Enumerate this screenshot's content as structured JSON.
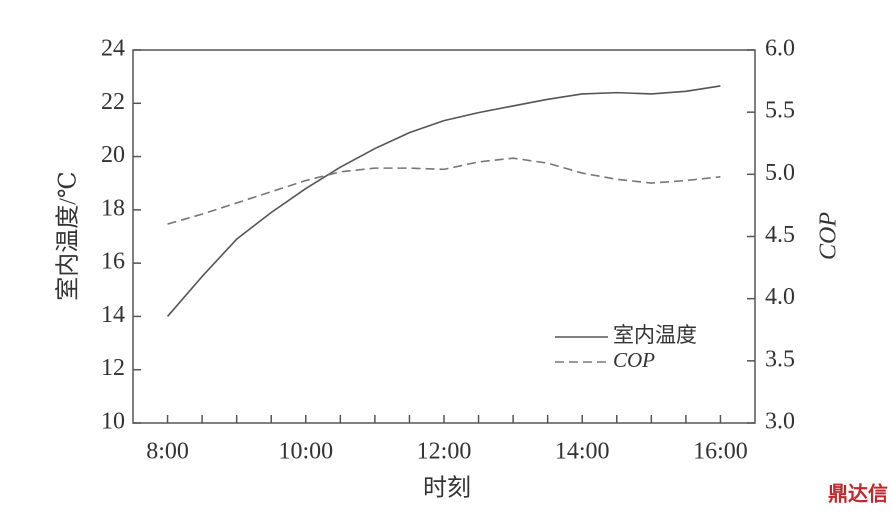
{
  "chart_data": {
    "type": "line",
    "x_label": "时刻",
    "y_label": "室内温度/℃",
    "y2_label": "COP",
    "x": [
      8,
      8.5,
      9,
      9.5,
      10,
      10.5,
      11,
      11.5,
      12,
      12.5,
      13,
      13.5,
      14,
      14.5,
      15,
      15.5,
      16
    ],
    "series": [
      {
        "name": "室内温度",
        "color": "#555555",
        "dash": false,
        "values": [
          14.0,
          15.5,
          16.9,
          17.9,
          18.8,
          19.6,
          20.3,
          20.9,
          21.35,
          21.65,
          21.9,
          22.15,
          22.35,
          22.4,
          22.35,
          22.45,
          22.65
        ]
      },
      {
        "name": "COP",
        "color": "#777777",
        "dash": true,
        "axis": "y2",
        "values": [
          4.6,
          4.68,
          4.77,
          4.86,
          4.95,
          5.02,
          5.05,
          5.05,
          5.04,
          5.1,
          5.13,
          5.09,
          5.01,
          4.96,
          4.93,
          4.95,
          4.98
        ]
      }
    ],
    "xlim": [
      7.5,
      16.5
    ],
    "xticks": [
      {
        "value": 8,
        "label": "8:00"
      },
      {
        "value": 10,
        "label": "10:00"
      },
      {
        "value": 12,
        "label": "12:00"
      },
      {
        "value": 14,
        "label": "14:00"
      },
      {
        "value": 16,
        "label": "16:00"
      }
    ],
    "xminorticks": [
      8.5,
      9,
      9.5,
      10.5,
      11,
      11.5,
      12.5,
      13,
      13.5,
      14.5,
      15,
      15.5
    ],
    "ylim": [
      10,
      24
    ],
    "yticks": [
      10,
      12,
      14,
      16,
      18,
      20,
      22,
      24
    ],
    "y2lim": [
      3,
      6
    ],
    "y2ticks": [
      {
        "value": 3,
        "label": "3.0"
      },
      {
        "value": 3.5,
        "label": "3.5"
      },
      {
        "value": 4,
        "label": "4.0"
      },
      {
        "value": 4.5,
        "label": "4.5"
      },
      {
        "value": 5,
        "label": "5.0"
      },
      {
        "value": 5.5,
        "label": "5.5"
      },
      {
        "value": 6,
        "label": "6.0"
      }
    ],
    "grid": false,
    "watermark": "鼎达信"
  }
}
